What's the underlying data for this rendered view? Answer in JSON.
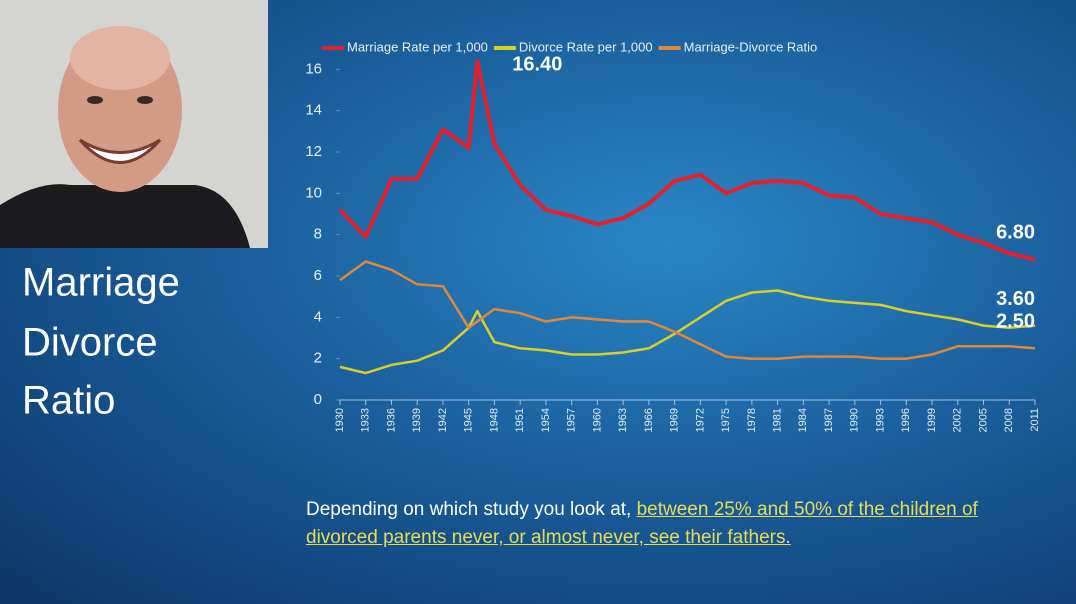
{
  "slide": {
    "title_lines": [
      "Marriage",
      "Divorce",
      "Ratio"
    ],
    "caption": {
      "text": "Depending on which study you look at, ",
      "link": "between 25% and 50% of the children of divorced parents never, or almost never, see their fathers."
    }
  },
  "chart_data": {
    "type": "line",
    "x": [
      1930,
      1933,
      1936,
      1939,
      1942,
      1945,
      1946,
      1948,
      1951,
      1954,
      1957,
      1960,
      1963,
      1966,
      1969,
      1972,
      1975,
      1978,
      1981,
      1984,
      1987,
      1990,
      1993,
      1996,
      1999,
      2002,
      2005,
      2008,
      2011
    ],
    "series": [
      {
        "name": "Marriage Rate per 1,000",
        "color": "#e3202c",
        "values": [
          9.2,
          7.9,
          10.7,
          10.7,
          13.1,
          12.2,
          16.4,
          12.4,
          10.4,
          9.2,
          8.9,
          8.5,
          8.8,
          9.5,
          10.6,
          10.9,
          10.0,
          10.5,
          10.6,
          10.5,
          9.9,
          9.8,
          9.0,
          8.8,
          8.6,
          8.0,
          7.6,
          7.1,
          6.8
        ],
        "value_labels": [
          null,
          null,
          null,
          null,
          null,
          null,
          "16.40",
          null,
          null,
          null,
          null,
          null,
          null,
          null,
          null,
          null,
          null,
          null,
          null,
          null,
          null,
          null,
          null,
          null,
          null,
          null,
          null,
          null,
          "6.80"
        ]
      },
      {
        "name": "Divorce Rate per 1,000",
        "color": "#d9cf2a",
        "values": [
          1.6,
          1.3,
          1.7,
          1.9,
          2.4,
          3.5,
          4.3,
          2.8,
          2.5,
          2.4,
          2.2,
          2.2,
          2.3,
          2.5,
          3.2,
          4.0,
          4.8,
          5.2,
          5.3,
          5.0,
          4.8,
          4.7,
          4.6,
          4.3,
          4.1,
          3.9,
          3.6,
          3.5,
          3.6
        ],
        "value_labels": [
          null,
          null,
          null,
          null,
          null,
          null,
          null,
          null,
          null,
          null,
          null,
          null,
          null,
          null,
          null,
          null,
          null,
          null,
          null,
          null,
          null,
          null,
          null,
          null,
          null,
          null,
          null,
          null,
          "3.60"
        ]
      },
      {
        "name": "Marriage-Divorce Ratio",
        "color": "#e0883a",
        "values": [
          5.8,
          6.7,
          6.3,
          5.6,
          5.5,
          3.5,
          3.8,
          4.4,
          4.2,
          3.8,
          4.0,
          3.9,
          3.8,
          3.8,
          3.3,
          2.7,
          2.1,
          2.0,
          2.0,
          2.1,
          2.1,
          2.1,
          2.0,
          2.0,
          2.2,
          2.6,
          2.6,
          2.6,
          2.5
        ],
        "value_labels": [
          null,
          null,
          null,
          null,
          null,
          null,
          null,
          null,
          null,
          null,
          null,
          null,
          null,
          null,
          null,
          null,
          null,
          null,
          null,
          null,
          null,
          null,
          null,
          null,
          null,
          null,
          null,
          null,
          "2.50"
        ]
      }
    ],
    "xlim": [
      1930,
      2011
    ],
    "xticks": [
      1930,
      1933,
      1936,
      1939,
      1942,
      1945,
      1948,
      1951,
      1954,
      1957,
      1960,
      1963,
      1966,
      1969,
      1972,
      1975,
      1978,
      1981,
      1984,
      1987,
      1990,
      1993,
      1996,
      1999,
      2002,
      2005,
      2008,
      2011
    ],
    "ylim": [
      0,
      16.5
    ],
    "yticks": [
      0,
      2,
      4,
      6,
      8,
      10,
      12,
      14,
      16
    ],
    "legend": "top"
  }
}
